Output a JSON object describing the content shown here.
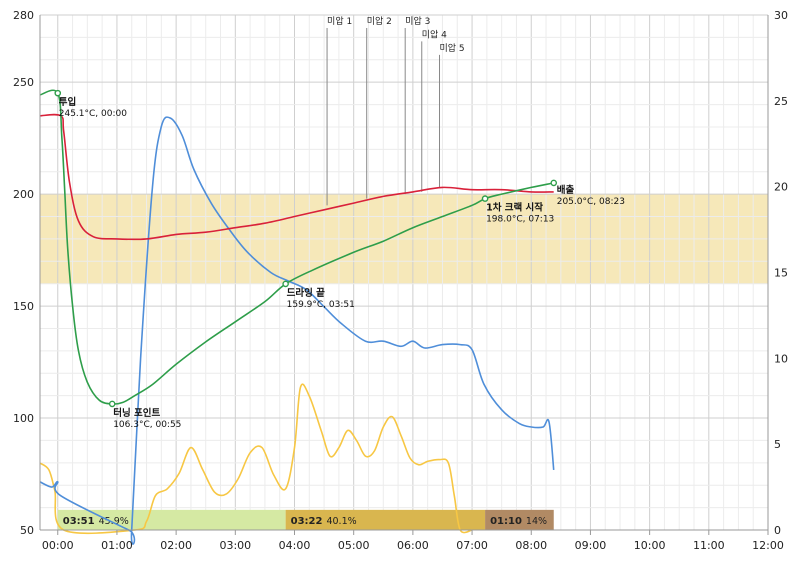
{
  "chart_data": {
    "type": "line",
    "title": "",
    "xlabel": "",
    "ylabel_left": "",
    "ylabel_right": "",
    "x_ticks": [
      "00:00",
      "01:00",
      "02:00",
      "03:00",
      "04:00",
      "05:00",
      "06:00",
      "07:00",
      "08:00",
      "09:00",
      "10:00",
      "11:00",
      "12:00"
    ],
    "xlim_minutes": [
      -0.3,
      12.0
    ],
    "ylim_left": [
      50,
      280
    ],
    "y_ticks_left": [
      50,
      100,
      150,
      200,
      250,
      280
    ],
    "ylim_right": [
      0,
      30
    ],
    "y_ticks_right": [
      0,
      5,
      10,
      15,
      20,
      25,
      30
    ],
    "target_band": {
      "from": 160,
      "to": 200,
      "color": "#f5e7b5"
    },
    "colors": {
      "bean_temp": "#2e9e4a",
      "env_temp": "#d9213a",
      "ror": "#4f8ed9",
      "gas": "#f7c744"
    },
    "series": [
      {
        "key": "bean_temp",
        "axis": "left",
        "points": [
          [
            -0.3,
            244.3
          ],
          [
            0,
            245.1
          ],
          [
            0.07,
            225
          ],
          [
            0.12,
            200
          ],
          [
            0.17,
            175
          ],
          [
            0.25,
            150
          ],
          [
            0.35,
            130
          ],
          [
            0.5,
            116
          ],
          [
            0.7,
            108
          ],
          [
            0.92,
            106.3
          ],
          [
            1.1,
            107
          ],
          [
            1.3,
            110
          ],
          [
            1.6,
            115
          ],
          [
            2.0,
            124
          ],
          [
            2.5,
            134
          ],
          [
            3.0,
            143
          ],
          [
            3.5,
            152
          ],
          [
            3.85,
            159.9
          ],
          [
            4.3,
            166
          ],
          [
            5.0,
            174
          ],
          [
            5.5,
            179
          ],
          [
            6.0,
            185
          ],
          [
            6.5,
            190
          ],
          [
            7.0,
            195
          ],
          [
            7.22,
            198.0
          ],
          [
            7.5,
            200
          ],
          [
            8.0,
            203
          ],
          [
            8.38,
            205.0
          ]
        ]
      },
      {
        "key": "env_temp",
        "axis": "left",
        "points": [
          [
            -0.3,
            235
          ],
          [
            0.05,
            235
          ],
          [
            0.1,
            228
          ],
          [
            0.2,
            205
          ],
          [
            0.35,
            188
          ],
          [
            0.6,
            181
          ],
          [
            1.0,
            180
          ],
          [
            1.5,
            180
          ],
          [
            2.0,
            182
          ],
          [
            2.5,
            183
          ],
          [
            3.0,
            185
          ],
          [
            3.5,
            187
          ],
          [
            4.0,
            190
          ],
          [
            4.5,
            193
          ],
          [
            5.0,
            196
          ],
          [
            5.5,
            199
          ],
          [
            6.0,
            201
          ],
          [
            6.5,
            203
          ],
          [
            7.0,
            202
          ],
          [
            7.5,
            202
          ],
          [
            8.0,
            201
          ],
          [
            8.38,
            201
          ]
        ]
      },
      {
        "key": "ror",
        "axis": "right",
        "points": [
          [
            -0.3,
            2.8
          ],
          [
            -0.1,
            2.5
          ],
          [
            0.0,
            2.8
          ],
          [
            0.05,
            2.0
          ],
          [
            1.2,
            0
          ],
          [
            1.25,
            0
          ],
          [
            1.4,
            10
          ],
          [
            1.6,
            20
          ],
          [
            1.75,
            23.5
          ],
          [
            1.9,
            24
          ],
          [
            2.1,
            23
          ],
          [
            2.3,
            21
          ],
          [
            2.6,
            19
          ],
          [
            2.9,
            17.5
          ],
          [
            3.2,
            16.2
          ],
          [
            3.6,
            15
          ],
          [
            3.9,
            14.5
          ],
          [
            4.2,
            14
          ],
          [
            4.5,
            13
          ],
          [
            4.8,
            12
          ],
          [
            5.2,
            11
          ],
          [
            5.5,
            11
          ],
          [
            5.8,
            10.7
          ],
          [
            6.0,
            11
          ],
          [
            6.2,
            10.6
          ],
          [
            6.5,
            10.8
          ],
          [
            6.8,
            10.8
          ],
          [
            7.0,
            10.5
          ],
          [
            7.2,
            8.5
          ],
          [
            7.5,
            7
          ],
          [
            7.8,
            6.2
          ],
          [
            8.0,
            6
          ],
          [
            8.2,
            6
          ],
          [
            8.3,
            6.3
          ],
          [
            8.38,
            3.5
          ]
        ]
      },
      {
        "key": "gas",
        "axis": "right",
        "points": [
          [
            -0.3,
            3.9
          ],
          [
            -0.15,
            3.5
          ],
          [
            -0.05,
            2.3
          ],
          [
            0.1,
            0
          ],
          [
            1.3,
            0
          ],
          [
            1.5,
            0.5
          ],
          [
            1.65,
            2.0
          ],
          [
            1.85,
            2.4
          ],
          [
            2.05,
            3.3
          ],
          [
            2.25,
            4.8
          ],
          [
            2.45,
            3.5
          ],
          [
            2.65,
            2.2
          ],
          [
            2.85,
            2.1
          ],
          [
            3.05,
            3.0
          ],
          [
            3.25,
            4.5
          ],
          [
            3.45,
            4.8
          ],
          [
            3.65,
            3.2
          ],
          [
            3.85,
            2.4
          ],
          [
            4.0,
            4.8
          ],
          [
            4.1,
            8.3
          ],
          [
            4.25,
            7.8
          ],
          [
            4.45,
            5.8
          ],
          [
            4.6,
            4.3
          ],
          [
            4.75,
            4.8
          ],
          [
            4.9,
            5.8
          ],
          [
            5.05,
            5.2
          ],
          [
            5.2,
            4.3
          ],
          [
            5.35,
            4.6
          ],
          [
            5.5,
            6.0
          ],
          [
            5.65,
            6.6
          ],
          [
            5.8,
            5.5
          ],
          [
            5.95,
            4.2
          ],
          [
            6.1,
            3.8
          ],
          [
            6.25,
            4.0
          ],
          [
            6.45,
            4.1
          ],
          [
            6.6,
            3.9
          ],
          [
            6.7,
            2.0
          ],
          [
            6.8,
            0
          ],
          [
            7.0,
            0
          ]
        ]
      }
    ],
    "events": [
      {
        "name": "투입",
        "detail": "245.1°C, 00:00",
        "t": 0.0,
        "temp": 245.1,
        "label_side": "below-right"
      },
      {
        "name": "터닝 포인트",
        "detail": "106.3°C, 00:55",
        "t": 0.92,
        "temp": 106.3,
        "label_side": "below-right"
      },
      {
        "name": "드라잉 끝",
        "detail": "159.9°C, 03:51",
        "t": 3.85,
        "temp": 159.9,
        "label_side": "below-right"
      },
      {
        "name": "1차 크랙 시작",
        "detail": "198.0°C, 07:13",
        "t": 7.22,
        "temp": 198.0,
        "label_side": "below-right"
      },
      {
        "name": "배출",
        "detail": "205.0°C, 08:23",
        "t": 8.38,
        "temp": 205.0,
        "label_side": "right"
      }
    ],
    "annotations": [
      {
        "label": "미압 1",
        "t": 4.55,
        "label_temp": 276,
        "line_bottom_temp": 195
      },
      {
        "label": "미압 2",
        "t": 5.22,
        "label_temp": 276,
        "line_bottom_temp": 198
      },
      {
        "label": "미압 3",
        "t": 5.87,
        "label_temp": 276,
        "line_bottom_temp": 200
      },
      {
        "label": "미압 4",
        "t": 6.15,
        "label_temp": 270,
        "line_bottom_temp": 201
      },
      {
        "label": "미압 5",
        "t": 6.45,
        "label_temp": 264,
        "line_bottom_temp": 203
      }
    ],
    "phases": [
      {
        "time": "03:51",
        "pct": "45.9%",
        "start": 0.0,
        "end": 3.85,
        "color": "#d5e9a3"
      },
      {
        "time": "03:22",
        "pct": "40.1%",
        "start": 3.85,
        "end": 7.22,
        "color": "#d9b64f"
      },
      {
        "time": "01:10",
        "pct": "14%",
        "start": 7.22,
        "end": 8.38,
        "color": "#b18a64"
      }
    ]
  }
}
